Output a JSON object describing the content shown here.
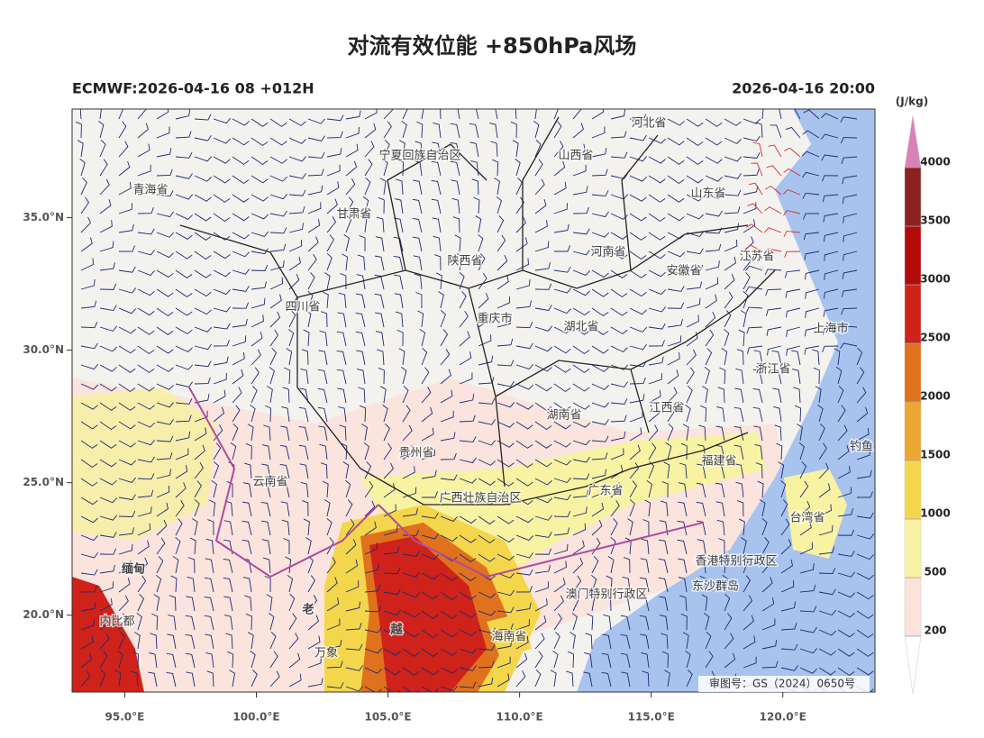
{
  "header": {
    "title": "对流有效位能 +850hPa风场",
    "left": "ECMWF:2026-04-16 08 +012H",
    "right": "2026-04-16 20:00"
  },
  "map": {
    "xlim": [
      93.0,
      123.5
    ],
    "ylim": [
      17.1,
      39.1
    ],
    "xticks": [
      {
        "value": 95,
        "label": "95.0°E"
      },
      {
        "value": 100,
        "label": "100.0°E"
      },
      {
        "value": 105,
        "label": "105.0°E"
      },
      {
        "value": 110,
        "label": "110.0°E"
      },
      {
        "value": 115,
        "label": "115.0°E"
      },
      {
        "value": 120,
        "label": "120.0°E"
      }
    ],
    "yticks": [
      {
        "value": 20,
        "label": "20.0°N"
      },
      {
        "value": 25,
        "label": "25.0°N"
      },
      {
        "value": 30,
        "label": "30.0°N"
      },
      {
        "value": 35,
        "label": "35.0°N"
      }
    ],
    "places": [
      "青海省",
      "甘肃省",
      "宁夏回族自治区",
      "山西省",
      "河北省",
      "山东省",
      "河南省",
      "陕西省",
      "江苏省",
      "安徽省",
      "四川省",
      "重庆市",
      "湖北省",
      "上海市",
      "浙江省",
      "湖南省",
      "江西省",
      "贵州省",
      "云南省",
      "福建省",
      "广西壮族自治区",
      "广东省",
      "台湾省",
      "钓鱼",
      "香港特别行政区",
      "澳门特别行政区",
      "东沙群岛",
      "海南省",
      "缅甸",
      "老",
      "越",
      "内比都",
      "万象"
    ],
    "footer": "审图号：GS（2024）0650号"
  },
  "colorbar": {
    "unit": "(J/kg)",
    "levels": [
      200,
      500,
      1000,
      1500,
      2000,
      2500,
      3000,
      3500,
      4000
    ],
    "colors": [
      "#fbe2da",
      "#f8f3a2",
      "#f3d64c",
      "#eaa832",
      "#e0721e",
      "#cf221a",
      "#b40a0a",
      "#8a2222"
    ],
    "over_color": "#d882b8",
    "under_color": "#ffffff"
  }
}
